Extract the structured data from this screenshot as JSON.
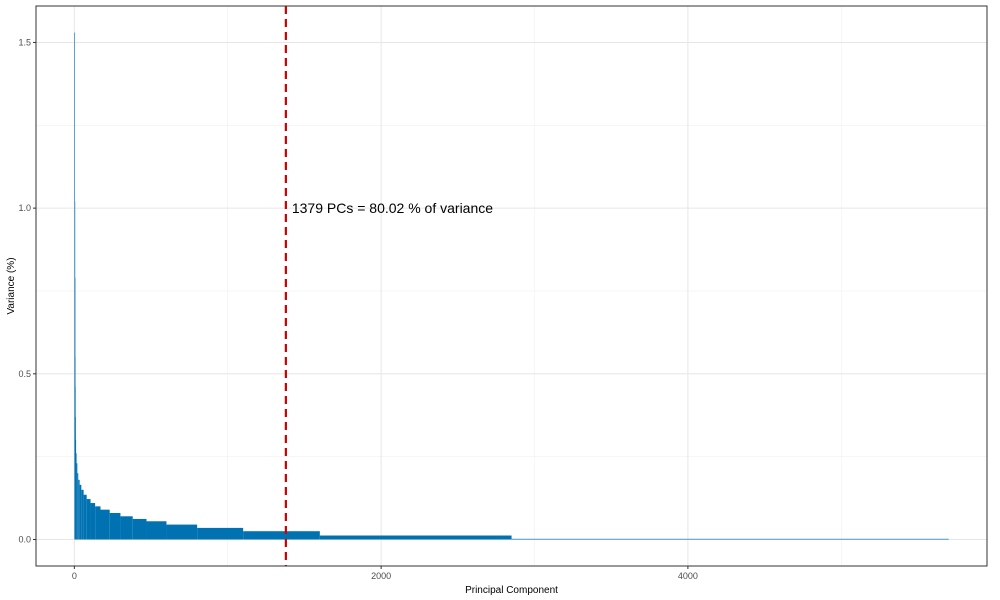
{
  "chart_data": {
    "type": "bar",
    "title": "",
    "xlabel": "Principal Component",
    "ylabel": "Variance (%)",
    "xlim": [
      -250,
      5950
    ],
    "ylim": [
      -0.08,
      1.61
    ],
    "x_ticks": [
      0,
      2000,
      4000
    ],
    "x_tick_labels": [
      "0",
      "2000",
      "4000"
    ],
    "y_ticks": [
      0.0,
      0.5,
      1.0,
      1.5
    ],
    "y_tick_labels": [
      "0.0",
      "0.5",
      "1.0",
      "1.5"
    ],
    "grid": true,
    "bar_color": "#0072B2",
    "bars": [
      {
        "pc_start": 1,
        "pc_end": 1,
        "variance": 1.53
      },
      {
        "pc_start": 2,
        "pc_end": 2,
        "variance": 1.02
      },
      {
        "pc_start": 3,
        "pc_end": 3,
        "variance": 0.79
      },
      {
        "pc_start": 4,
        "pc_end": 4,
        "variance": 0.55
      },
      {
        "pc_start": 5,
        "pc_end": 5,
        "variance": 0.46
      },
      {
        "pc_start": 6,
        "pc_end": 7,
        "variance": 0.37
      },
      {
        "pc_start": 8,
        "pc_end": 10,
        "variance": 0.3
      },
      {
        "pc_start": 11,
        "pc_end": 14,
        "variance": 0.26
      },
      {
        "pc_start": 15,
        "pc_end": 19,
        "variance": 0.23
      },
      {
        "pc_start": 20,
        "pc_end": 25,
        "variance": 0.2
      },
      {
        "pc_start": 26,
        "pc_end": 34,
        "variance": 0.18
      },
      {
        "pc_start": 35,
        "pc_end": 45,
        "variance": 0.165
      },
      {
        "pc_start": 46,
        "pc_end": 60,
        "variance": 0.15
      },
      {
        "pc_start": 61,
        "pc_end": 80,
        "variance": 0.135
      },
      {
        "pc_start": 81,
        "pc_end": 105,
        "variance": 0.122
      },
      {
        "pc_start": 106,
        "pc_end": 135,
        "variance": 0.11
      },
      {
        "pc_start": 136,
        "pc_end": 170,
        "variance": 0.1
      },
      {
        "pc_start": 171,
        "pc_end": 230,
        "variance": 0.09
      },
      {
        "pc_start": 231,
        "pc_end": 300,
        "variance": 0.08
      },
      {
        "pc_start": 301,
        "pc_end": 380,
        "variance": 0.07
      },
      {
        "pc_start": 381,
        "pc_end": 470,
        "variance": 0.062
      },
      {
        "pc_start": 471,
        "pc_end": 600,
        "variance": 0.055
      },
      {
        "pc_start": 601,
        "pc_end": 800,
        "variance": 0.045
      },
      {
        "pc_start": 801,
        "pc_end": 1100,
        "variance": 0.035
      },
      {
        "pc_start": 1101,
        "pc_end": 1600,
        "variance": 0.025
      },
      {
        "pc_start": 1601,
        "pc_end": 2850,
        "variance": 0.012
      },
      {
        "pc_start": 2851,
        "pc_end": 5700,
        "variance": 0.002
      }
    ],
    "reference_line": {
      "x": 1379,
      "color": "#CC0000",
      "style": "dashed"
    },
    "annotation": {
      "text": "1379 PCs = 80.02 % of variance",
      "x": 1379,
      "y": 1.0
    }
  }
}
